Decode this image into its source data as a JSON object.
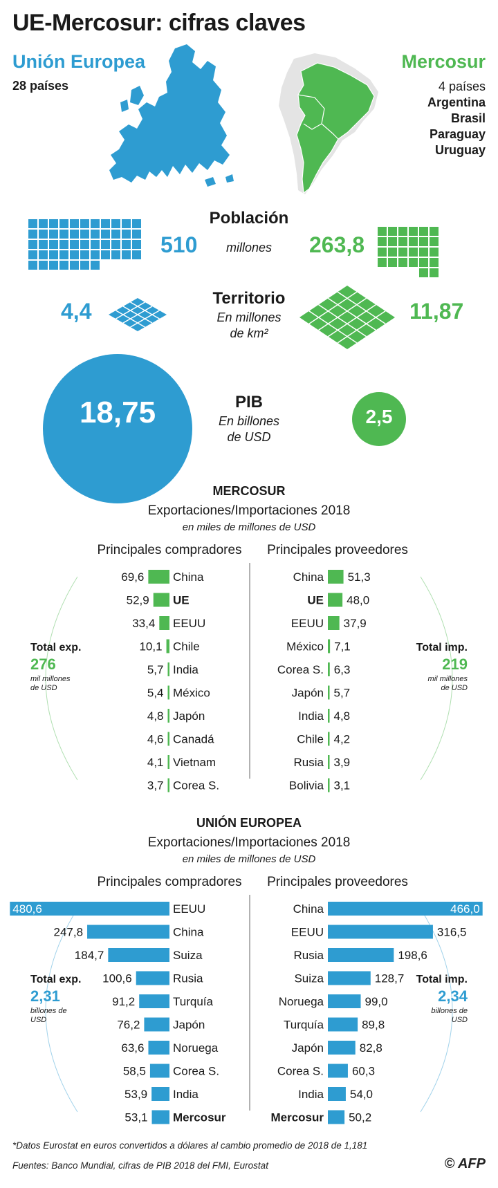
{
  "title": "UE-Mercosur: cifras claves",
  "eu": {
    "name": "Unión Europea",
    "countries": "28 países",
    "population": "510",
    "territory": "4,4",
    "gdp": "18,75"
  },
  "mercosur": {
    "name": "Mercosur",
    "countries_count": "4 países",
    "members": [
      "Argentina",
      "Brasil",
      "Paraguay",
      "Uruguay"
    ],
    "population": "263,8",
    "territory": "11,87",
    "gdp": "2,5"
  },
  "metrics": {
    "population_label": "Población",
    "population_unit": "millones",
    "territory_label": "Territorio",
    "territory_unit_line1": "En millones",
    "territory_unit_line2": "de km²",
    "gdp_label": "PIB",
    "gdp_unit_line1": "En billones",
    "gdp_unit_line2": "de USD"
  },
  "colors": {
    "eu": "#2e9cd1",
    "mercosur": "#4fb852",
    "text": "#1a1a1a"
  },
  "chart_data": [
    {
      "type": "bar",
      "block": "MERCOSUR",
      "subtitle": "Exportaciones/Importaciones 2018",
      "unit": "en miles de millones de USD",
      "buyers_label": "Principales compradores",
      "suppliers_label": "Principales proveedores",
      "total_exp": {
        "label": "Total exp.",
        "value": "276",
        "unit": "mil millones de USD"
      },
      "total_imp": {
        "label": "Total imp.",
        "value": "219",
        "unit": "mil millones de USD"
      },
      "buyers": [
        {
          "name": "China",
          "value": 69.6,
          "label": "69,6"
        },
        {
          "name": "UE",
          "value": 52.9,
          "label": "52,9",
          "bold": true
        },
        {
          "name": "EEUU",
          "value": 33.4,
          "label": "33,4"
        },
        {
          "name": "Chile",
          "value": 10.1,
          "label": "10,1"
        },
        {
          "name": "India",
          "value": 5.7,
          "label": "5,7"
        },
        {
          "name": "México",
          "value": 5.4,
          "label": "5,4"
        },
        {
          "name": "Japón",
          "value": 4.8,
          "label": "4,8"
        },
        {
          "name": "Canadá",
          "value": 4.6,
          "label": "4,6"
        },
        {
          "name": "Vietnam",
          "value": 4.1,
          "label": "4,1"
        },
        {
          "name": "Corea S.",
          "value": 3.7,
          "label": "3,7"
        }
      ],
      "suppliers": [
        {
          "name": "China",
          "value": 51.3,
          "label": "51,3"
        },
        {
          "name": "UE",
          "value": 48.0,
          "label": "48,0",
          "bold": true
        },
        {
          "name": "EEUU",
          "value": 37.9,
          "label": "37,9"
        },
        {
          "name": "México",
          "value": 7.1,
          "label": "7,1"
        },
        {
          "name": "Corea S.",
          "value": 6.3,
          "label": "6,3"
        },
        {
          "name": "Japón",
          "value": 5.7,
          "label": "5,7"
        },
        {
          "name": "India",
          "value": 4.8,
          "label": "4,8"
        },
        {
          "name": "Chile",
          "value": 4.2,
          "label": "4,2"
        },
        {
          "name": "Rusia",
          "value": 3.9,
          "label": "3,9"
        },
        {
          "name": "Bolivia",
          "value": 3.1,
          "label": "3,1"
        }
      ]
    },
    {
      "type": "bar",
      "block": "UNIÓN EUROPEA",
      "subtitle": "Exportaciones/Importaciones 2018",
      "unit": "en miles de millones de USD",
      "buyers_label": "Principales compradores",
      "suppliers_label": "Principales proveedores",
      "total_exp": {
        "label": "Total exp.",
        "value": "2,31",
        "unit": "billones de USD"
      },
      "total_imp": {
        "label": "Total imp.",
        "value": "2,34",
        "unit": "billones de USD"
      },
      "buyers": [
        {
          "name": "EEUU",
          "value": 480.6,
          "label": "480,6"
        },
        {
          "name": "China",
          "value": 247.8,
          "label": "247,8"
        },
        {
          "name": "Suiza",
          "value": 184.7,
          "label": "184,7"
        },
        {
          "name": "Rusia",
          "value": 100.6,
          "label": "100,6"
        },
        {
          "name": "Turquía",
          "value": 91.2,
          "label": "91,2"
        },
        {
          "name": "Japón",
          "value": 76.2,
          "label": "76,2"
        },
        {
          "name": "Noruega",
          "value": 63.6,
          "label": "63,6"
        },
        {
          "name": "Corea S.",
          "value": 58.5,
          "label": "58,5"
        },
        {
          "name": "India",
          "value": 53.9,
          "label": "53,9"
        },
        {
          "name": "Mercosur",
          "value": 53.1,
          "label": "53,1",
          "bold": true
        }
      ],
      "suppliers": [
        {
          "name": "China",
          "value": 466.0,
          "label": "466,0"
        },
        {
          "name": "EEUU",
          "value": 316.5,
          "label": "316,5"
        },
        {
          "name": "Rusia",
          "value": 198.6,
          "label": "198,6"
        },
        {
          "name": "Suiza",
          "value": 128.7,
          "label": "128,7"
        },
        {
          "name": "Noruega",
          "value": 99.0,
          "label": "99,0"
        },
        {
          "name": "Turquía",
          "value": 89.8,
          "label": "89,8"
        },
        {
          "name": "Japón",
          "value": 82.8,
          "label": "82,8"
        },
        {
          "name": "Corea S.",
          "value": 60.3,
          "label": "60,3"
        },
        {
          "name": "India",
          "value": 54.0,
          "label": "54,0"
        },
        {
          "name": "Mercosur",
          "value": 50.2,
          "label": "50,2",
          "bold": true
        }
      ]
    }
  ],
  "footnotes": {
    "note": "*Datos Eurostat en euros convertidos a dólares al cambio promedio de 2018 de 1,181",
    "sources": "Fuentes: Banco Mundial, cifras de PIB 2018 del FMI, Eurostat",
    "credit": "© AFP"
  }
}
